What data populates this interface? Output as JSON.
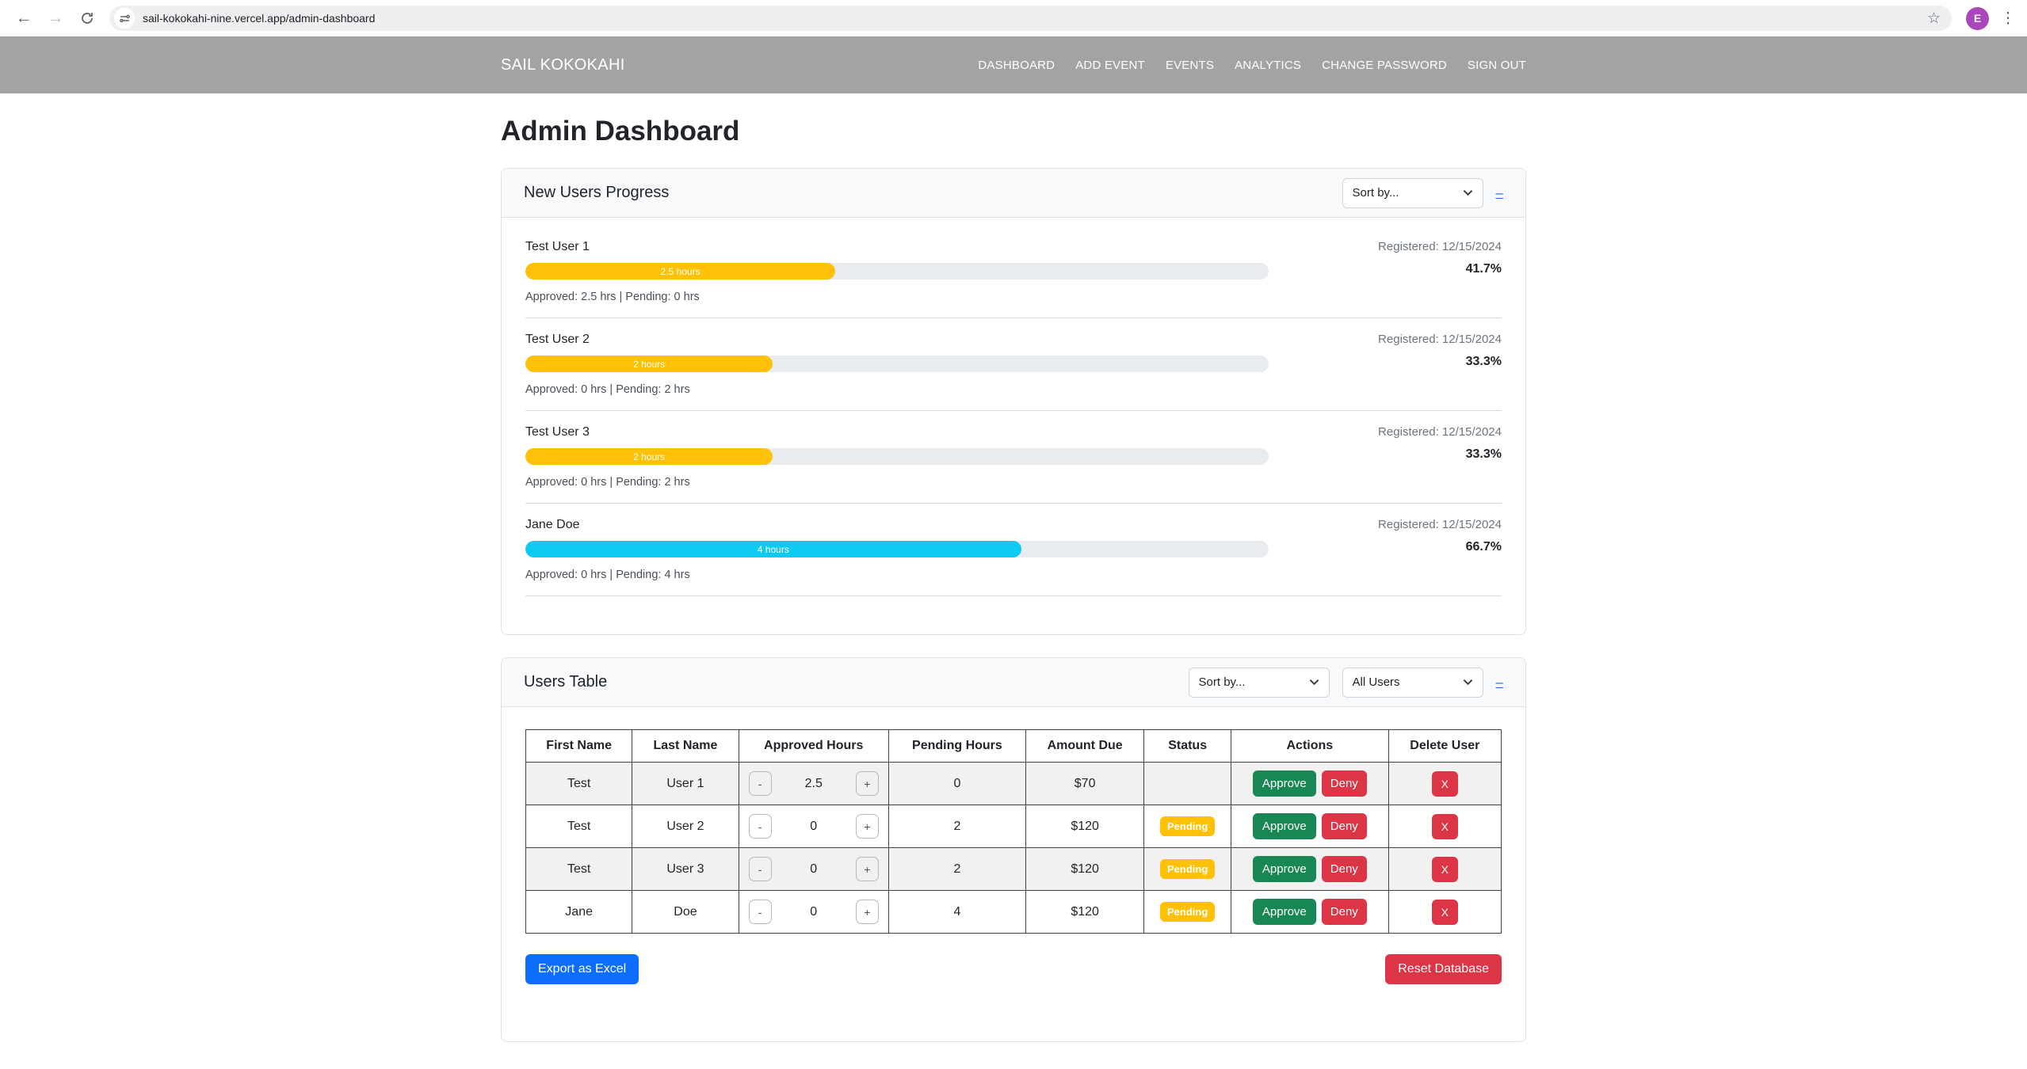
{
  "browser": {
    "url": "sail-kokokahi-nine.vercel.app/admin-dashboard",
    "avatar": "E"
  },
  "navbar": {
    "brand": "SAIL KOKOKAHI",
    "links": [
      "DASHBOARD",
      "ADD EVENT",
      "EVENTS",
      "ANALYTICS",
      "CHANGE PASSWORD",
      "SIGN OUT"
    ]
  },
  "page": {
    "title": "Admin Dashboard"
  },
  "progress_card": {
    "title": "New Users Progress",
    "sort_label": "Sort by...",
    "collapse_label": "–",
    "users": [
      {
        "name": "Test User 1",
        "registered": "Registered: 12/15/2024",
        "percent_text": "41.7%",
        "percent": 41.7,
        "bar_label": "2.5 hours",
        "bar_color": "#ffc107",
        "stats": "Approved: 2.5 hrs | Pending: 0 hrs"
      },
      {
        "name": "Test User 2",
        "registered": "Registered: 12/15/2024",
        "percent_text": "33.3%",
        "percent": 33.3,
        "bar_label": "2 hours",
        "bar_color": "#ffc107",
        "stats": "Approved: 0 hrs | Pending: 2 hrs"
      },
      {
        "name": "Test User 3",
        "registered": "Registered: 12/15/2024",
        "percent_text": "33.3%",
        "percent": 33.3,
        "bar_label": "2 hours",
        "bar_color": "#ffc107",
        "stats": "Approved: 0 hrs | Pending: 2 hrs"
      },
      {
        "name": "Jane Doe",
        "registered": "Registered: 12/15/2024",
        "percent_text": "66.7%",
        "percent": 66.7,
        "bar_label": "4 hours",
        "bar_color": "#0dcaf0",
        "stats": "Approved: 0 hrs | Pending: 4 hrs"
      }
    ]
  },
  "users_table": {
    "title": "Users Table",
    "sort_label": "Sort by...",
    "filter_label": "All Users",
    "collapse_label": "–",
    "columns": [
      "First Name",
      "Last Name",
      "Approved Hours",
      "Pending Hours",
      "Amount Due",
      "Status",
      "Actions",
      "Delete User"
    ],
    "minus_label": "-",
    "plus_label": "+",
    "approve_label": "Approve",
    "deny_label": "Deny",
    "delete_label": "X",
    "rows": [
      {
        "first_name": "Test",
        "last_name": "User 1",
        "approved_hours": "2.5",
        "pending_hours": "0",
        "amount_due": "$70",
        "status": ""
      },
      {
        "first_name": "Test",
        "last_name": "User 2",
        "approved_hours": "0",
        "pending_hours": "2",
        "amount_due": "$120",
        "status": "Pending"
      },
      {
        "first_name": "Test",
        "last_name": "User 3",
        "approved_hours": "0",
        "pending_hours": "2",
        "amount_due": "$120",
        "status": "Pending"
      },
      {
        "first_name": "Jane",
        "last_name": "Doe",
        "approved_hours": "0",
        "pending_hours": "4",
        "amount_due": "$120",
        "status": "Pending"
      }
    ],
    "export_label": "Export as Excel",
    "reset_label": "Reset Database"
  },
  "colors": {
    "navbar_gray": "#a3a3a3",
    "warning": "#ffc107",
    "info": "#0dcaf0",
    "success": "#198754",
    "danger": "#dc3545",
    "primary": "#0d6efd"
  }
}
